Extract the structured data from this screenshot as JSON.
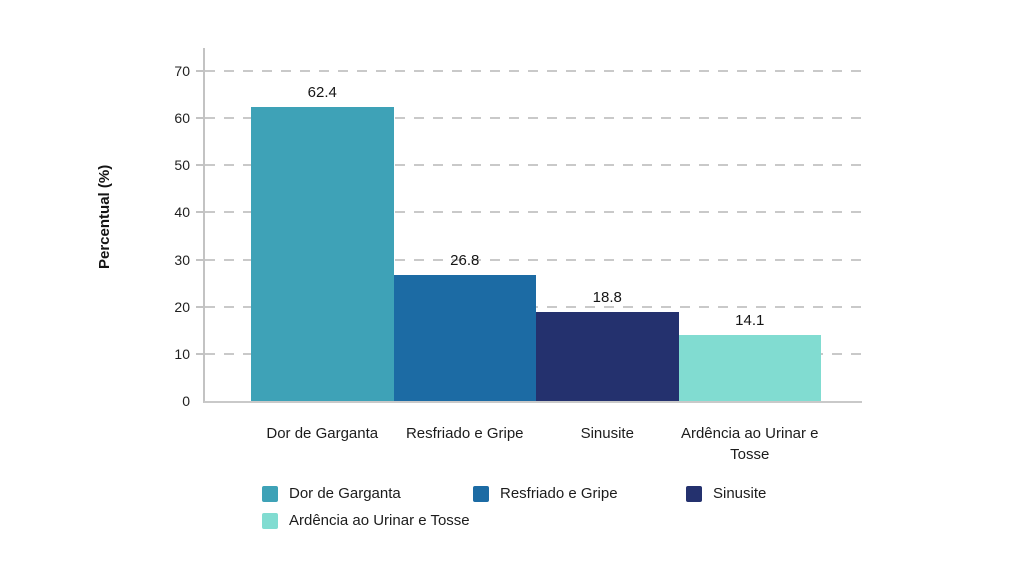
{
  "chart_data": {
    "type": "bar",
    "title": "",
    "xlabel": "",
    "ylabel": "Percentual (%)",
    "categories": [
      "Dor de Garganta",
      "Resfriado e Gripe",
      "Sinusite",
      "Ardência ao Urinar e Tosse"
    ],
    "values": [
      62.4,
      26.8,
      18.8,
      14.1
    ],
    "value_labels": [
      "62.4",
      "26.8",
      "18.8",
      "14.1"
    ],
    "bar_colors": [
      "#3EA2B7",
      "#1C6BA4",
      "#24316E",
      "#81DCD1"
    ],
    "ylim": [
      0,
      70
    ],
    "yticks": [
      0,
      10,
      20,
      30,
      40,
      50,
      60,
      70
    ],
    "grid": "horizontal-dashed",
    "legend": {
      "position": "bottom",
      "entries": [
        {
          "label": "Dor de Garganta",
          "color": "#3EA2B7"
        },
        {
          "label": "Resfriado e Gripe",
          "color": "#1C6BA4"
        },
        {
          "label": "Sinusite",
          "color": "#24316E"
        },
        {
          "label": "Ardência ao Urinar e Tosse",
          "color": "#81DCD1"
        }
      ]
    }
  },
  "colors": {
    "axis": "#c3c3c3",
    "grid": "#c9c9c9",
    "text": "#1f1f1f",
    "background": "#ffffff"
  }
}
